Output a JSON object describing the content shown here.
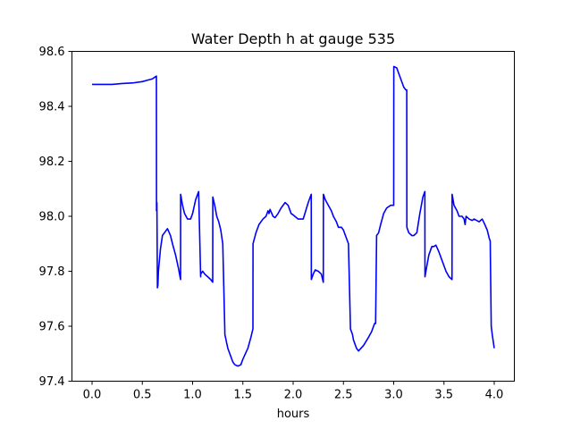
{
  "chart_data": {
    "type": "line",
    "title": "Water Depth h at gauge 535",
    "xlabel": "hours",
    "ylabel": "",
    "xlim": [
      -0.2,
      4.2
    ],
    "ylim": [
      97.4,
      98.6
    ],
    "xticks": [
      0.0,
      0.5,
      1.0,
      1.5,
      2.0,
      2.5,
      3.0,
      3.5,
      4.0
    ],
    "xtick_labels": [
      "0.0",
      "0.5",
      "1.0",
      "1.5",
      "2.0",
      "2.5",
      "3.0",
      "3.5",
      "4.0"
    ],
    "yticks": [
      97.4,
      97.6,
      97.8,
      98.0,
      98.2,
      98.4,
      98.6
    ],
    "ytick_labels": [
      "97.4",
      "97.6",
      "97.8",
      "98.0",
      "98.2",
      "98.4",
      "98.6"
    ],
    "grid": false,
    "series": [
      {
        "color": "#0000ff",
        "x": [
          0.0,
          0.1,
          0.2,
          0.3,
          0.4,
          0.5,
          0.55,
          0.6,
          0.62,
          0.64,
          0.641,
          0.645,
          0.65,
          0.655,
          0.66,
          0.68,
          0.7,
          0.72,
          0.75,
          0.78,
          0.8,
          0.83,
          0.86,
          0.88,
          0.881,
          0.9,
          0.92,
          0.95,
          0.98,
          1.0,
          1.03,
          1.06,
          1.08,
          1.081,
          1.1,
          1.12,
          1.15,
          1.18,
          1.2,
          1.201,
          1.22,
          1.24,
          1.26,
          1.28,
          1.3,
          1.32,
          1.321,
          1.35,
          1.38,
          1.4,
          1.42,
          1.45,
          1.48,
          1.5,
          1.55,
          1.58,
          1.6,
          1.601,
          1.63,
          1.66,
          1.7,
          1.73,
          1.75,
          1.76,
          1.77,
          1.8,
          1.82,
          1.85,
          1.88,
          1.92,
          1.95,
          1.98,
          2.0,
          2.05,
          2.1,
          2.15,
          2.18,
          2.181,
          2.2,
          2.22,
          2.25,
          2.28,
          2.3,
          2.301,
          2.32,
          2.35,
          2.38,
          2.4,
          2.43,
          2.45,
          2.48,
          2.5,
          2.52,
          2.55,
          2.57,
          2.59,
          2.6,
          2.61,
          2.63,
          2.65,
          2.7,
          2.75,
          2.78,
          2.8,
          2.81,
          2.82,
          2.83,
          2.85,
          2.87,
          2.9,
          2.93,
          2.97,
          3.0,
          3.001,
          3.03,
          3.05,
          3.07,
          3.1,
          3.12,
          3.13,
          3.131,
          3.15,
          3.18,
          3.2,
          3.23,
          3.26,
          3.29,
          3.31,
          3.311,
          3.33,
          3.35,
          3.38,
          3.4,
          3.42,
          3.45,
          3.48,
          3.52,
          3.55,
          3.58,
          3.581,
          3.6,
          3.63,
          3.65,
          3.68,
          3.7,
          3.71,
          3.72,
          3.75,
          3.78,
          3.8,
          3.85,
          3.88,
          3.9,
          3.93,
          3.95,
          3.96,
          3.97,
          3.98,
          4.0
        ],
        "y": [
          98.48,
          98.48,
          98.48,
          98.483,
          98.485,
          98.49,
          98.495,
          98.5,
          98.505,
          98.51,
          98.02,
          98.05,
          97.74,
          97.75,
          97.8,
          97.88,
          97.93,
          97.94,
          97.955,
          97.93,
          97.9,
          97.86,
          97.81,
          97.77,
          98.08,
          98.04,
          98.01,
          97.99,
          97.99,
          98.01,
          98.06,
          98.09,
          97.78,
          97.79,
          97.8,
          97.79,
          97.78,
          97.77,
          97.76,
          98.07,
          98.04,
          98.0,
          97.98,
          97.95,
          97.9,
          97.59,
          97.57,
          97.52,
          97.49,
          97.47,
          97.46,
          97.455,
          97.46,
          97.48,
          97.52,
          97.56,
          97.59,
          97.9,
          97.94,
          97.97,
          97.99,
          98.0,
          98.02,
          98.01,
          98.025,
          98.0,
          97.995,
          98.01,
          98.03,
          98.05,
          98.04,
          98.01,
          98.005,
          97.99,
          97.99,
          98.05,
          98.08,
          97.77,
          97.79,
          97.805,
          97.8,
          97.79,
          97.76,
          98.08,
          98.06,
          98.04,
          98.02,
          98.0,
          97.98,
          97.96,
          97.96,
          97.95,
          97.93,
          97.9,
          97.59,
          97.57,
          97.55,
          97.54,
          97.52,
          97.51,
          97.53,
          97.56,
          97.58,
          97.6,
          97.61,
          97.61,
          97.93,
          97.94,
          97.97,
          98.01,
          98.03,
          98.04,
          98.04,
          98.545,
          98.54,
          98.52,
          98.5,
          98.47,
          98.46,
          98.46,
          97.96,
          97.94,
          97.93,
          97.93,
          97.94,
          98.01,
          98.07,
          98.09,
          97.78,
          97.82,
          97.86,
          97.89,
          97.89,
          97.895,
          97.87,
          97.84,
          97.8,
          97.78,
          97.77,
          98.08,
          98.04,
          98.02,
          98.0,
          98.0,
          97.99,
          97.97,
          98.0,
          97.99,
          97.985,
          97.99,
          97.98,
          97.99,
          97.975,
          97.95,
          97.92,
          97.91,
          97.6,
          97.57,
          97.52
        ]
      }
    ]
  }
}
